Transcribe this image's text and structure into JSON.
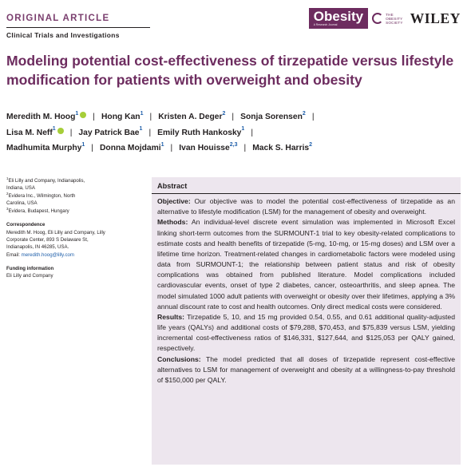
{
  "header": {
    "article_type": "ORIGINAL ARTICLE",
    "section": "Clinical Trials and Investigations",
    "journal_name": "Obesity",
    "journal_subtitle": "A Research Journal",
    "society_line1": "THE",
    "society_line2": "OBESITY",
    "society_line3": "SOCIETY",
    "publisher": "WILEY"
  },
  "title": "Modeling potential cost-effectiveness of tirzepatide versus lifestyle modification for patients with overweight and obesity",
  "authors": [
    {
      "name": "Meredith M. Hoog",
      "aff": "1",
      "orcid": true
    },
    {
      "name": "Hong Kan",
      "aff": "1",
      "orcid": false
    },
    {
      "name": "Kristen A. Deger",
      "aff": "2",
      "orcid": false
    },
    {
      "name": "Sonja Sorensen",
      "aff": "2",
      "orcid": false
    },
    {
      "name": "Lisa M. Neff",
      "aff": "1",
      "orcid": true
    },
    {
      "name": "Jay Patrick Bae",
      "aff": "1",
      "orcid": false
    },
    {
      "name": "Emily Ruth Hankosky",
      "aff": "1",
      "orcid": false
    },
    {
      "name": "Madhumita Murphy",
      "aff": "1",
      "orcid": false
    },
    {
      "name": "Donna Mojdami",
      "aff": "1",
      "orcid": false
    },
    {
      "name": "Ivan Houisse",
      "aff": "2,3",
      "orcid": false
    },
    {
      "name": "Mack S. Harris",
      "aff": "2",
      "orcid": false
    }
  ],
  "affiliations": [
    {
      "num": "1",
      "line1": "Eli Lilly and Company, Indianapolis,",
      "line2": "Indiana, USA"
    },
    {
      "num": "2",
      "line1": "Evidera Inc., Wilmington, North",
      "line2": "Carolina, USA"
    },
    {
      "num": "3",
      "line1": "Evidera, Budapest, Hungary",
      "line2": ""
    }
  ],
  "correspondence": {
    "heading": "Correspondence",
    "line1": "Meredith M. Hoog, Eli Lilly and Company, Lilly",
    "line2": "Corporate Center, 893 S Delaware St,",
    "line3": "Indianapolis, IN 46285, USA.",
    "email_label": "Email: ",
    "email": "meredith.hoog@lilly.com"
  },
  "funding": {
    "heading": "Funding information",
    "text": "Eli Lilly and Company"
  },
  "abstract": {
    "heading": "Abstract",
    "objective_label": "Objective:",
    "objective": "Our objective was to model the potential cost-effectiveness of tirzepatide as an alternative to lifestyle modification (LSM) for the management of obesity and overweight.",
    "methods_label": "Methods:",
    "methods": "An individual-level discrete event simulation was implemented in Microsoft Excel linking short-term outcomes from the SURMOUNT-1 trial to key obesity-related complications to estimate costs and health benefits of tirzepatide (5-mg, 10-mg, or 15-mg doses) and LSM over a lifetime time horizon. Treatment-related changes in cardiometabolic factors were modeled using data from SURMOUNT-1; the relationship between patient status and risk of obesity complications was obtained from published literature. Model complications included cardiovascular events, onset of type 2 diabetes, cancer, osteoarthritis, and sleep apnea. The model simulated 1000 adult patients with overweight or obesity over their lifetimes, applying a 3% annual discount rate to cost and health outcomes. Only direct medical costs were considered.",
    "results_label": "Results:",
    "results": "Tirzepatide 5, 10, and 15 mg provided 0.54, 0.55, and 0.61 additional quality-adjusted life years (QALYs) and additional costs of $79,288, $70,453, and $75,839 versus LSM, yielding incremental cost-effectiveness ratios of $146,331, $127,644, and $125,053 per QALY gained, respectively.",
    "conclusions_label": "Conclusions:",
    "conclusions": "The model predicted that all doses of tirzepatide represent cost-effective alternatives to LSM for management of overweight and obesity at a willingness-to-pay threshold of $150,000 per QALY."
  }
}
